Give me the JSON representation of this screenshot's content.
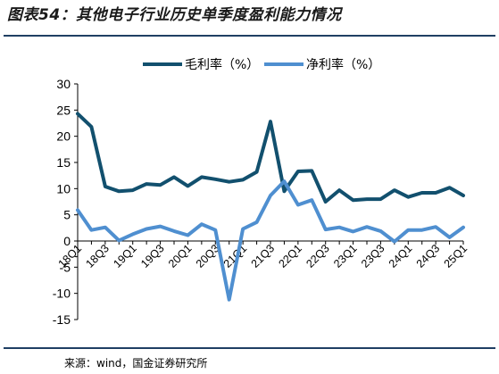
{
  "header": {
    "title": "图表54：其他电子行业历史单季度盈利能力情况"
  },
  "footer": {
    "source": "来源：wind，国金证券研究所"
  },
  "colors": {
    "series_gross": "#12506e",
    "series_net": "#4f8fd0",
    "rule": "#1f3f63"
  },
  "chart_data": {
    "type": "line",
    "x": [
      "18Q1",
      "18Q2",
      "18Q3",
      "18Q4",
      "19Q1",
      "19Q2",
      "19Q3",
      "19Q4",
      "20Q1",
      "20Q2",
      "20Q3",
      "20Q4",
      "21Q1",
      "21Q2",
      "21Q3",
      "21Q4",
      "22Q1",
      "22Q2",
      "22Q3",
      "22Q4",
      "23Q1",
      "23Q2",
      "23Q3",
      "23Q4",
      "24Q1",
      "24Q2",
      "24Q3",
      "24Q4",
      "25Q1"
    ],
    "x_tick_labels": [
      "18Q1",
      "18Q3",
      "19Q1",
      "19Q3",
      "20Q1",
      "20Q3",
      "21Q1",
      "21Q3",
      "22Q1",
      "22Q3",
      "23Q1",
      "23Q3",
      "24Q1",
      "24Q3",
      "25Q1"
    ],
    "series": [
      {
        "name": "毛利率（%）",
        "values": [
          24.3,
          21.8,
          10.4,
          9.5,
          9.7,
          10.9,
          10.7,
          12.2,
          10.5,
          12.2,
          11.8,
          11.3,
          11.7,
          13.2,
          22.8,
          9.5,
          13.3,
          13.4,
          7.5,
          9.7,
          7.8,
          8.0,
          8.0,
          9.7,
          8.4,
          9.2,
          9.2,
          10.2,
          8.7
        ]
      },
      {
        "name": "净利率（%）",
        "values": [
          5.9,
          2.1,
          2.6,
          0.1,
          1.3,
          2.3,
          2.8,
          1.9,
          1.1,
          3.2,
          2.1,
          -11.2,
          2.3,
          3.6,
          8.7,
          11.4,
          6.9,
          7.8,
          2.2,
          2.6,
          1.8,
          2.7,
          1.9,
          -0.1,
          2.1,
          2.1,
          2.7,
          0.7,
          2.6
        ]
      }
    ],
    "ylim": [
      -15,
      30
    ],
    "y_ticks": [
      -15,
      -10,
      -5,
      0,
      5,
      10,
      15,
      20,
      25,
      30
    ],
    "legend_position": "top-center",
    "grid": false
  }
}
